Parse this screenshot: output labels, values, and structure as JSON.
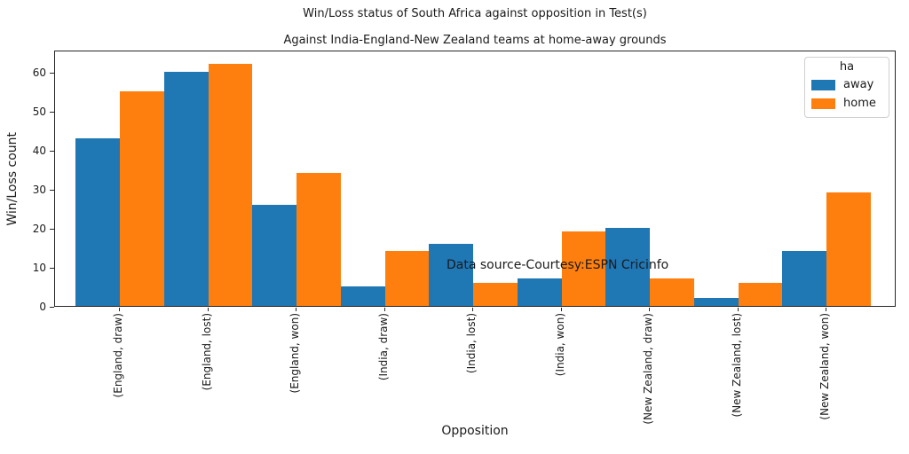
{
  "chart_data": {
    "type": "bar",
    "title": "Win/Loss status of South Africa against opposition in Test(s)",
    "subtitle": "Against India-England-New Zealand teams at home-away grounds",
    "xlabel": "Opposition",
    "ylabel": "Win/Loss count",
    "categories": [
      "(England, draw)",
      "(England, lost)",
      "(England, won)",
      "(India, draw)",
      "(India, lost)",
      "(India, won)",
      "(New Zealand, draw)",
      "(New Zealand, lost)",
      "(New Zealand, won)"
    ],
    "series": [
      {
        "name": "away",
        "color": "#1f77b4",
        "values": [
          43,
          60,
          26,
          5,
          16,
          7,
          20,
          2,
          14
        ]
      },
      {
        "name": "home",
        "color": "#ff7f0e",
        "values": [
          55,
          62,
          34,
          14,
          6,
          19,
          7,
          6,
          29
        ]
      }
    ],
    "yticks": [
      0,
      10,
      20,
      30,
      40,
      50,
      60
    ],
    "ylim": [
      0,
      65.7
    ],
    "grid": false,
    "legend": {
      "title": "ha",
      "position": "upper right"
    },
    "annotation": "Data source-Courtesy:ESPN Cricinfo",
    "axis_color": "#262626"
  }
}
